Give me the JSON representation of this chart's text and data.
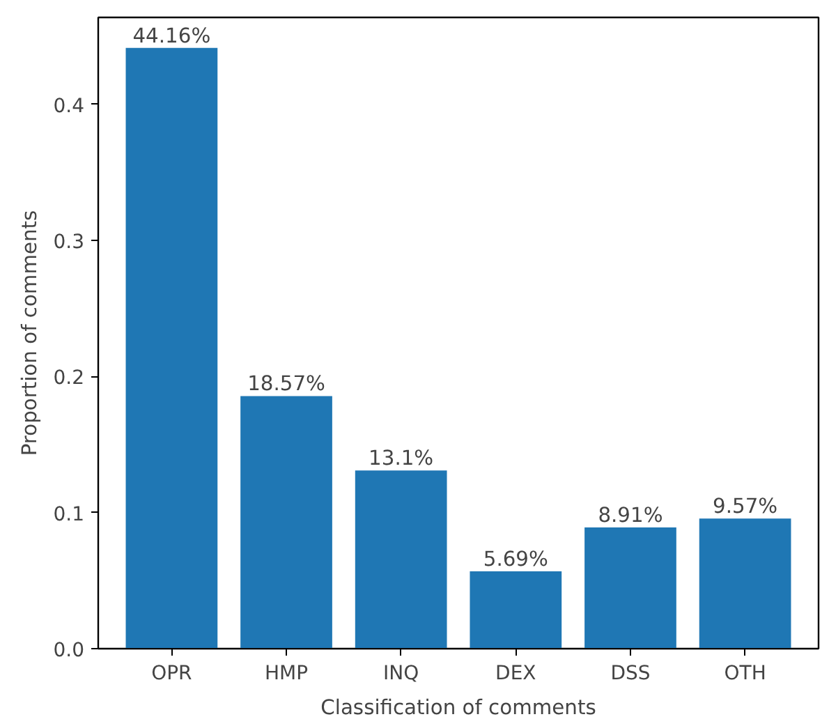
{
  "chart_data": {
    "type": "bar",
    "xlabel": "Classification of comments",
    "ylabel": "Proportion of comments",
    "categories": [
      "OPR",
      "HMP",
      "INQ",
      "DEX",
      "DSS",
      "OTH"
    ],
    "values": [
      0.4416,
      0.1857,
      0.131,
      0.0569,
      0.0891,
      0.0957
    ],
    "value_labels": [
      "44.16%",
      "18.57%",
      "13.1%",
      "5.69%",
      "8.91%",
      "9.57%"
    ],
    "color": "#1f77b4",
    "ylim": [
      0,
      0.464
    ],
    "yticks": [
      {
        "value": 0,
        "label": "0.0"
      },
      0.1,
      0.2,
      0.3,
      0.4
    ],
    "grid": false
  }
}
